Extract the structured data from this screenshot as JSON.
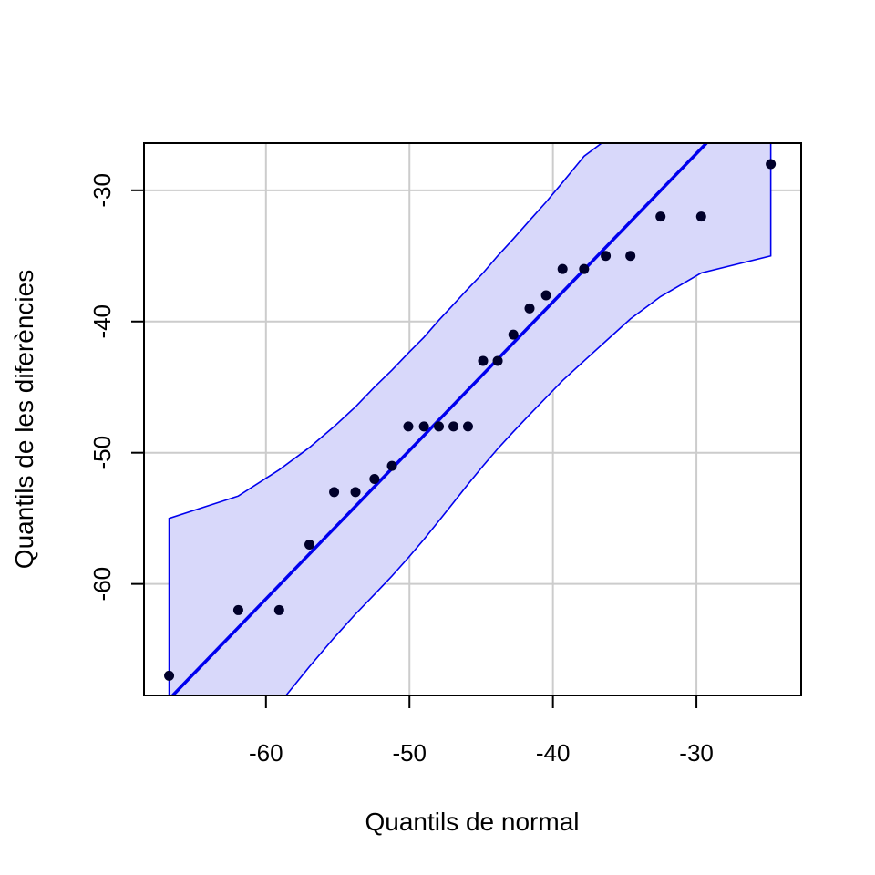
{
  "chart_data": {
    "type": "scatter",
    "title": "",
    "xlabel": "Quantils de normal",
    "ylabel": "Quantils de les diferències",
    "xlim": [
      -68.5,
      -22.7
    ],
    "ylim": [
      -68.5,
      -26.4
    ],
    "x_ticks": [
      -60,
      -50,
      -40,
      -30
    ],
    "y_ticks": [
      -60,
      -50,
      -40,
      -30
    ],
    "x_tick_labels": [
      "-60",
      "-50",
      "-40",
      "-30"
    ],
    "y_tick_labels": [
      "-60",
      "-50",
      "-40",
      "-30"
    ],
    "grid": true,
    "legend": "none",
    "points": [
      {
        "x": -66.75,
        "y": -67
      },
      {
        "x": -61.93,
        "y": -62
      },
      {
        "x": -59.08,
        "y": -62
      },
      {
        "x": -56.97,
        "y": -57
      },
      {
        "x": -55.25,
        "y": -53
      },
      {
        "x": -53.76,
        "y": -53
      },
      {
        "x": -52.44,
        "y": -52
      },
      {
        "x": -51.22,
        "y": -51
      },
      {
        "x": -50.08,
        "y": -48
      },
      {
        "x": -48.99,
        "y": -48
      },
      {
        "x": -47.95,
        "y": -48
      },
      {
        "x": -46.93,
        "y": -48
      },
      {
        "x": -45.92,
        "y": -48
      },
      {
        "x": -44.87,
        "y": -43
      },
      {
        "x": -43.85,
        "y": -43
      },
      {
        "x": -42.76,
        "y": -41
      },
      {
        "x": -41.63,
        "y": -39
      },
      {
        "x": -40.48,
        "y": -38
      },
      {
        "x": -39.33,
        "y": -36
      },
      {
        "x": -37.83,
        "y": -36
      },
      {
        "x": -36.32,
        "y": -35
      },
      {
        "x": -34.6,
        "y": -35
      },
      {
        "x": -32.5,
        "y": -32
      },
      {
        "x": -29.67,
        "y": -32
      },
      {
        "x": -24.82,
        "y": -28
      }
    ],
    "reference_line": {
      "x": [
        -66.5,
        -29.3
      ],
      "y": [
        -68.5,
        -26.4
      ]
    },
    "band_upper": [
      {
        "x": -66.75,
        "y": -55.0
      },
      {
        "x": -61.93,
        "y": -53.3
      },
      {
        "x": -59.08,
        "y": -51.3
      },
      {
        "x": -56.97,
        "y": -49.6
      },
      {
        "x": -55.25,
        "y": -48.0
      },
      {
        "x": -53.76,
        "y": -46.5
      },
      {
        "x": -52.44,
        "y": -45.0
      },
      {
        "x": -51.22,
        "y": -43.7
      },
      {
        "x": -50.08,
        "y": -42.4
      },
      {
        "x": -48.99,
        "y": -41.2
      },
      {
        "x": -47.95,
        "y": -39.9
      },
      {
        "x": -46.93,
        "y": -38.7
      },
      {
        "x": -45.92,
        "y": -37.5
      },
      {
        "x": -44.87,
        "y": -36.3
      },
      {
        "x": -43.85,
        "y": -35.0
      },
      {
        "x": -42.76,
        "y": -33.7
      },
      {
        "x": -41.63,
        "y": -32.3
      },
      {
        "x": -40.48,
        "y": -30.9
      },
      {
        "x": -39.33,
        "y": -29.4
      },
      {
        "x": -37.83,
        "y": -27.4
      },
      {
        "x": -36.6,
        "y": -26.4
      }
    ],
    "band_lower": [
      {
        "x": -58.6,
        "y": -68.5
      },
      {
        "x": -56.97,
        "y": -66.3
      },
      {
        "x": -55.25,
        "y": -64.1
      },
      {
        "x": -53.76,
        "y": -62.3
      },
      {
        "x": -52.44,
        "y": -60.8
      },
      {
        "x": -51.22,
        "y": -59.4
      },
      {
        "x": -50.08,
        "y": -58.0
      },
      {
        "x": -48.99,
        "y": -56.6
      },
      {
        "x": -47.95,
        "y": -55.2
      },
      {
        "x": -46.93,
        "y": -53.8
      },
      {
        "x": -45.92,
        "y": -52.4
      },
      {
        "x": -44.87,
        "y": -51.0
      },
      {
        "x": -43.85,
        "y": -49.7
      },
      {
        "x": -42.76,
        "y": -48.4
      },
      {
        "x": -41.63,
        "y": -47.1
      },
      {
        "x": -40.48,
        "y": -45.8
      },
      {
        "x": -39.33,
        "y": -44.5
      },
      {
        "x": -37.83,
        "y": -43.0
      },
      {
        "x": -36.32,
        "y": -41.5
      },
      {
        "x": -34.6,
        "y": -39.8
      },
      {
        "x": -32.5,
        "y": -38.1
      },
      {
        "x": -29.67,
        "y": -36.3
      },
      {
        "x": -24.82,
        "y": -35.0
      }
    ],
    "band_right_top_y": -26.4,
    "band_left_bottom_y": -68.5,
    "colors": {
      "band_fill": "#d8d8fa",
      "band_stroke": "#0000ee",
      "reference_line": "#0000ee",
      "points": "#00002a",
      "grid": "#cccccc",
      "frame": "#000000"
    }
  }
}
